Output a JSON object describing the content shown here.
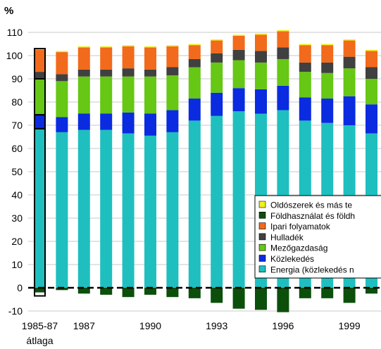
{
  "chart_data": {
    "type": "bar",
    "stacked": true,
    "ylabel": "%",
    "ylim": [
      -10,
      110
    ],
    "yticks": [
      -10,
      0,
      10,
      20,
      30,
      40,
      50,
      60,
      70,
      80,
      90,
      100,
      110
    ],
    "grid": true,
    "legend_position": "right",
    "categories": [
      "1985-87 átlaga",
      "1986",
      "1987",
      "1988",
      "1989",
      "1990",
      "1991",
      "1992",
      "1993",
      "1994",
      "1995",
      "1996",
      "1997",
      "1998",
      "1999",
      "2000"
    ],
    "xtick_labels": [
      {
        "category": "1985-87 átlaga",
        "text": "1985-87"
      },
      {
        "category": "1987",
        "text": "1987"
      },
      {
        "category": "1990",
        "text": "1990"
      },
      {
        "category": "1993",
        "text": "1993"
      },
      {
        "category": "1996",
        "text": "1996"
      },
      {
        "category": "1999",
        "text": "1999"
      }
    ],
    "xtick_sublabel": {
      "category": "1985-87 átlaga",
      "text": "átlaga"
    },
    "highlight_category": "1985-87 átlaga",
    "series": [
      {
        "name": "Energia (közlekedés n",
        "color": "#1fbfbf",
        "values": [
          68.5,
          67,
          68,
          68,
          66.5,
          65.5,
          67,
          72,
          74,
          76,
          75,
          76.5,
          72,
          71,
          70,
          66.5
        ]
      },
      {
        "name": "Közlekedés",
        "color": "#0a2be0",
        "values": [
          6,
          6.5,
          7,
          7,
          9,
          9.5,
          9.5,
          9.5,
          10,
          10,
          10.5,
          10.5,
          10,
          10.5,
          12.5,
          12.5
        ]
      },
      {
        "name": "Mezőgazdaság",
        "color": "#66c714",
        "values": [
          15.5,
          15.5,
          16,
          16,
          15.5,
          16,
          15,
          13.5,
          13,
          12,
          11.5,
          11.5,
          11,
          11,
          12,
          11
        ]
      },
      {
        "name": "Hulladék",
        "color": "#404040",
        "values": [
          3,
          3,
          3,
          3,
          3.5,
          3,
          3.5,
          3.5,
          4,
          4.5,
          5,
          5,
          4,
          4.5,
          5,
          5
        ]
      },
      {
        "name": "Ipari folyamatok",
        "color": "#f26a1b",
        "values": [
          9.5,
          9.5,
          9.5,
          9.5,
          9.5,
          9.5,
          9,
          6,
          5.5,
          6,
          7,
          7,
          7.5,
          7.5,
          7,
          7
        ]
      },
      {
        "name": "Földhasználat és földh",
        "color": "#0b4f0b",
        "values": [
          -2,
          -1,
          -2.5,
          -3,
          -4,
          -3,
          -4,
          -4.5,
          -6.5,
          -9,
          -9.5,
          -10.5,
          -4.5,
          -4.5,
          -6.5,
          -2.5
        ]
      },
      {
        "name": "Oldószerek és más te",
        "color": "#f0f020",
        "values": [
          0.5,
          0.5,
          0.5,
          0.5,
          0.5,
          0.5,
          0.5,
          0.5,
          0.5,
          0.5,
          0.5,
          0.5,
          0.5,
          0.5,
          0.5,
          0.5
        ]
      }
    ],
    "legend_order": [
      "Oldószerek és más te",
      "Földhasználat és földh",
      "Ipari folyamatok",
      "Hulladék",
      "Mezőgazdaság",
      "Közlekedés",
      "Energia (közlekedés n"
    ]
  }
}
